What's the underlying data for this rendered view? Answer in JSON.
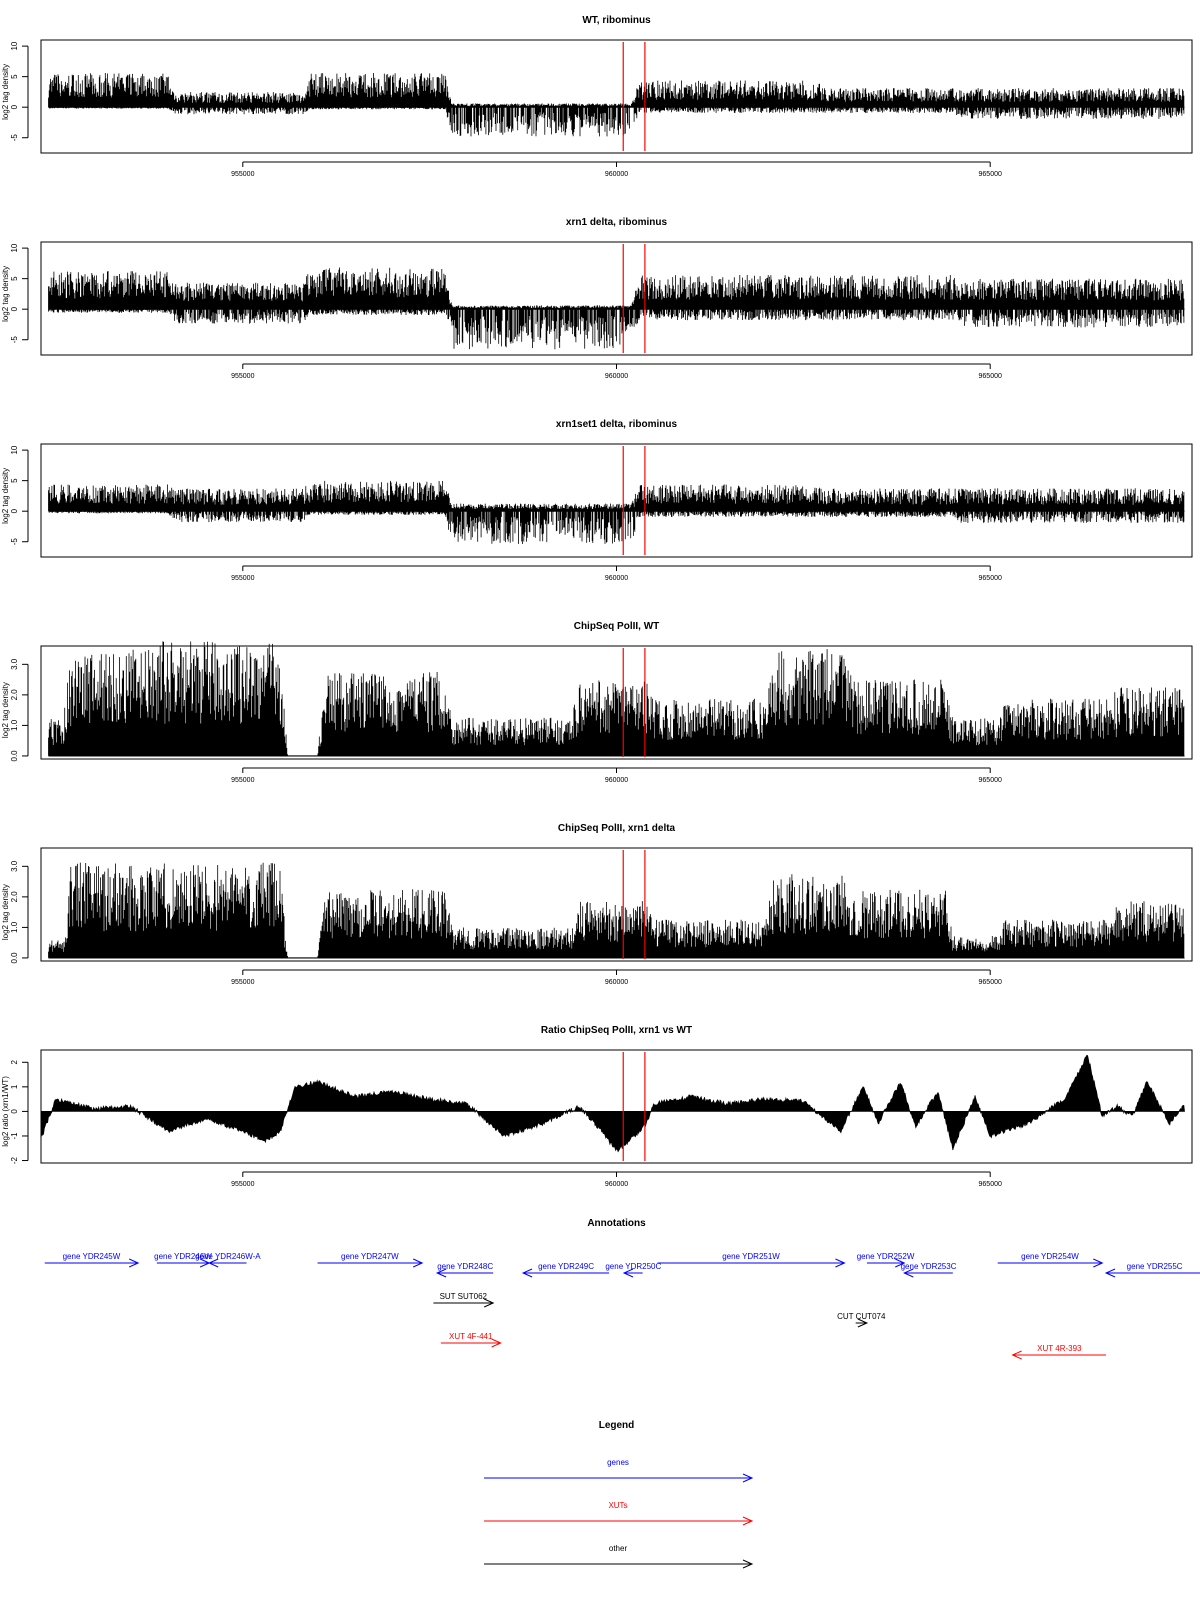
{
  "colors": {
    "data": "#000000",
    "marker": "#ff0000",
    "genes": "#0000ff",
    "xuts": "#ff0000",
    "other": "#000000"
  },
  "x_axis": {
    "range": [
      952300,
      967700
    ],
    "ticks": [
      955000,
      960000,
      965000
    ],
    "tick_labels": [
      "955000",
      "960000",
      "965000"
    ]
  },
  "markers_x": [
    960090,
    960380
  ],
  "chart_data": [
    {
      "type": "bar",
      "title": "WT, ribominus",
      "ylabel": "log2 tag density",
      "ylim": [
        -7.5,
        11
      ],
      "yticks": [
        -5,
        0,
        5,
        10
      ],
      "ytick_labels": [
        "-5",
        "0",
        "5",
        "10"
      ],
      "profile": {
        "x": [
          952400,
          954000,
          954100,
          955800,
          955900,
          957700,
          957800,
          960200,
          960300,
          962700,
          962800,
          964500,
          964600,
          967600
        ],
        "above": [
          4.5,
          4.5,
          2.0,
          2.0,
          4.5,
          4.5,
          0.5,
          0.5,
          3.5,
          3.5,
          2.5,
          2.5,
          2.5,
          2.5
        ],
        "below": [
          0.2,
          0.2,
          1.0,
          1.0,
          0.3,
          0.3,
          4.0,
          4.0,
          0.8,
          0.8,
          0.8,
          0.8,
          1.6,
          1.6
        ]
      }
    },
    {
      "type": "bar",
      "title": "xrn1 delta, ribominus",
      "ylabel": "log2 tag density",
      "ylim": [
        -7.5,
        11
      ],
      "yticks": [
        -5,
        0,
        5,
        10
      ],
      "ytick_labels": [
        "-5",
        "0",
        "5",
        "10"
      ],
      "profile": {
        "x": [
          952400,
          954000,
          954100,
          955800,
          955900,
          957700,
          957800,
          960200,
          960300,
          962700,
          962800,
          964500,
          964600,
          967600
        ],
        "above": [
          5.0,
          5.0,
          3.5,
          3.5,
          5.5,
          5.5,
          0.5,
          0.5,
          4.5,
          4.5,
          4.5,
          4.5,
          4.0,
          4.0
        ],
        "below": [
          0.5,
          0.5,
          2.0,
          2.0,
          0.8,
          0.8,
          5.5,
          5.5,
          1.5,
          1.5,
          1.5,
          1.5,
          2.5,
          2.5
        ]
      }
    },
    {
      "type": "bar",
      "title": "xrn1set1 delta, ribominus",
      "ylabel": "log2 tag density",
      "ylim": [
        -7.5,
        11
      ],
      "yticks": [
        -5,
        0,
        5,
        10
      ],
      "ytick_labels": [
        "-5",
        "0",
        "5",
        "10"
      ],
      "profile": {
        "x": [
          952400,
          954000,
          954100,
          955800,
          955900,
          957700,
          957800,
          960200,
          960300,
          962700,
          962800,
          964500,
          964600,
          967600
        ],
        "above": [
          3.5,
          3.5,
          3.0,
          3.0,
          4.0,
          4.0,
          1.0,
          1.0,
          3.5,
          3.5,
          3.0,
          3.0,
          3.0,
          3.0
        ],
        "below": [
          0.3,
          0.3,
          1.5,
          1.5,
          0.5,
          0.5,
          4.5,
          4.5,
          0.8,
          0.8,
          0.8,
          0.8,
          1.6,
          1.6
        ]
      }
    },
    {
      "type": "bar",
      "title": "ChipSeq PolII, WT",
      "ylabel": "log2 tag density",
      "ylim": [
        -0.1,
        3.6
      ],
      "yticks": [
        0,
        1,
        2,
        3
      ],
      "ytick_labels": [
        "0.0",
        "1.0",
        "2.0",
        "3.0"
      ],
      "profile": {
        "x": [
          952400,
          952600,
          952700,
          953800,
          953900,
          955500,
          955600,
          956000,
          956100,
          957700,
          957800,
          959400,
          959500,
          960400,
          960500,
          962000,
          962100,
          963100,
          963200,
          964400,
          964500,
          965100,
          965200,
          966600,
          966700,
          967600
        ],
        "above": [
          1.0,
          1.0,
          2.8,
          2.8,
          3.0,
          3.0,
          0,
          0,
          2.2,
          2.2,
          1.0,
          1.0,
          2.0,
          2.0,
          1.5,
          1.5,
          2.8,
          2.8,
          2.0,
          2.0,
          1.0,
          1.0,
          1.5,
          1.5,
          1.8,
          1.8
        ],
        "below": [
          0,
          0,
          0,
          0,
          0,
          0,
          0,
          0,
          0,
          0,
          0,
          0,
          0,
          0,
          0,
          0,
          0,
          0,
          0,
          0,
          0,
          0,
          0,
          0,
          0,
          0
        ]
      }
    },
    {
      "type": "bar",
      "title": "ChipSeq PolII, xrn1 delta",
      "ylabel": "log2 tag density",
      "ylim": [
        -0.1,
        3.6
      ],
      "yticks": [
        0,
        1,
        2,
        3
      ],
      "ytick_labels": [
        "0.0",
        "1.0",
        "2.0",
        "3.0"
      ],
      "profile": {
        "x": [
          952400,
          952600,
          952700,
          953800,
          953900,
          955500,
          955600,
          956000,
          956100,
          957700,
          957800,
          959400,
          959500,
          960400,
          960500,
          962000,
          962100,
          963100,
          963200,
          964400,
          964500,
          965100,
          965200,
          966600,
          966700,
          967600
        ],
        "above": [
          0.5,
          0.5,
          2.5,
          2.5,
          2.5,
          2.5,
          0,
          0,
          1.8,
          1.8,
          0.8,
          0.8,
          1.5,
          1.5,
          1.0,
          1.0,
          2.2,
          2.2,
          1.8,
          1.8,
          0.6,
          0.6,
          1.0,
          1.0,
          1.5,
          1.5
        ],
        "below": [
          0,
          0,
          0,
          0,
          0,
          0,
          0,
          0,
          0,
          0,
          0,
          0,
          0,
          0,
          0,
          0,
          0,
          0,
          0,
          0,
          0,
          0,
          0,
          0,
          0,
          0
        ]
      }
    },
    {
      "type": "area",
      "title": "Ratio ChipSeq PolII, xrn1 vs WT",
      "ylabel": "log2 ratio (xrn1/WT)",
      "ylim": [
        -2.1,
        2.5
      ],
      "yticks": [
        -2,
        -1,
        0,
        1,
        2
      ],
      "ytick_labels": [
        "-2",
        "-1",
        "0",
        "1",
        "2"
      ],
      "line": {
        "x": [
          952300,
          952500,
          953000,
          953500,
          954000,
          954500,
          955000,
          955300,
          955500,
          955700,
          956000,
          956500,
          957000,
          957500,
          958000,
          958500,
          959000,
          959500,
          959800,
          960000,
          960100,
          960400,
          960500,
          961000,
          961500,
          962000,
          962500,
          963000,
          963300,
          963500,
          963800,
          964000,
          964300,
          964500,
          964800,
          965000,
          965500,
          966000,
          966300,
          966500,
          966700,
          966900,
          967100,
          967400,
          967600
        ],
        "y": [
          -1.1,
          0.5,
          0.1,
          0.2,
          -0.8,
          -0.3,
          -0.8,
          -1.2,
          -0.8,
          1.0,
          1.2,
          0.6,
          0.8,
          0.5,
          0.3,
          -1.0,
          -0.5,
          0.2,
          -0.8,
          -1.6,
          -1.4,
          -0.5,
          0.3,
          0.6,
          0.3,
          0.5,
          0.4,
          -0.8,
          1.0,
          -0.5,
          1.2,
          -0.6,
          0.8,
          -1.5,
          0.6,
          -1.0,
          -0.5,
          0.5,
          2.3,
          -0.2,
          0.2,
          -0.2,
          1.2,
          -0.5,
          0.3
        ]
      }
    }
  ],
  "annotations": {
    "title": "Annotations",
    "features": [
      {
        "type": "genes",
        "name": "gene YDR245W",
        "start": 952350,
        "end": 953600,
        "row": 0
      },
      {
        "type": "genes",
        "name": "gene YDR246W",
        "start": 953850,
        "end": 954550,
        "row": 0
      },
      {
        "type": "genes",
        "name": "gene YDR246W-A",
        "start": 954550,
        "end": 955050,
        "row": 0
      },
      {
        "type": "genes",
        "name": "gene YDR247W",
        "start": 956000,
        "end": 957400,
        "row": 0
      },
      {
        "type": "genes",
        "name": "gene YDR248C",
        "start": 957600,
        "end": 958350,
        "row": 1
      },
      {
        "type": "genes",
        "name": "gene YDR249C",
        "start": 958750,
        "end": 959900,
        "row": 1
      },
      {
        "type": "genes",
        "name": "gene YDR250C",
        "start": 960100,
        "end": 960350,
        "row": 1
      },
      {
        "type": "genes",
        "name": "gene YDR251W",
        "start": 960550,
        "end": 963050,
        "row": 0
      },
      {
        "type": "genes",
        "name": "gene YDR252W",
        "start": 963350,
        "end": 963850,
        "row": 0
      },
      {
        "type": "genes",
        "name": "gene YDR253C",
        "start": 963850,
        "end": 964500,
        "row": 1
      },
      {
        "type": "genes",
        "name": "gene YDR254W",
        "start": 965100,
        "end": 966500,
        "row": 0
      },
      {
        "type": "genes",
        "name": "gene YDR255C",
        "start": 966550,
        "end": 967850,
        "row": 1
      },
      {
        "type": "other",
        "name": "SUT SUT062",
        "start": 957550,
        "end": 958350,
        "row": 2
      },
      {
        "type": "other",
        "name": "CUT CUT074",
        "start": 963200,
        "end": 963350,
        "row": 3
      },
      {
        "type": "xuts",
        "name": "XUT 4F-441",
        "start": 957650,
        "end": 958450,
        "row": 4
      },
      {
        "type": "xuts",
        "name": "XUT 4R-393",
        "start": 965300,
        "end": 966550,
        "row": 5
      }
    ]
  },
  "legend": {
    "title": "Legend",
    "items": [
      {
        "key": "genes",
        "label": "genes"
      },
      {
        "key": "xuts",
        "label": "XUTs"
      },
      {
        "key": "other",
        "label": "other"
      }
    ]
  }
}
